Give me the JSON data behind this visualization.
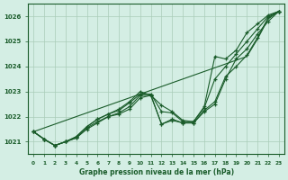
{
  "title": "Graphe pression niveau de la mer (hPa)",
  "background_color": "#d4eee4",
  "grid_color": "#aaccb8",
  "line_color": "#1a5c2a",
  "x_values": [
    0,
    1,
    2,
    3,
    4,
    5,
    6,
    7,
    8,
    9,
    10,
    11,
    12,
    13,
    14,
    15,
    16,
    17,
    18,
    19,
    20,
    21,
    22,
    23
  ],
  "straight_line": [
    1021.4,
    1021.55,
    1021.7,
    1021.85,
    1022.0,
    1022.15,
    1022.3,
    1022.45,
    1022.6,
    1022.75,
    1022.9,
    1023.05,
    1023.2,
    1023.35,
    1023.5,
    1023.65,
    1023.8,
    1023.95,
    1024.1,
    1024.25,
    1024.4,
    1025.1,
    1025.9,
    1026.2
  ],
  "series1": [
    1021.4,
    1021.1,
    1020.85,
    1021.0,
    1021.15,
    1021.5,
    1021.75,
    1022.0,
    1022.1,
    1022.3,
    1022.75,
    1022.85,
    1021.7,
    1021.85,
    1021.75,
    1021.75,
    1022.2,
    1022.5,
    1023.5,
    1024.3,
    1024.7,
    1025.3,
    1025.8,
    1026.2
  ],
  "series2": [
    1021.4,
    1021.1,
    1020.85,
    1021.0,
    1021.15,
    1021.55,
    1021.8,
    1022.0,
    1022.15,
    1022.4,
    1022.85,
    1022.85,
    1021.7,
    1021.9,
    1021.75,
    1021.75,
    1022.25,
    1022.6,
    1023.6,
    1024.0,
    1024.45,
    1025.15,
    1025.95,
    1026.2
  ],
  "series3": [
    1021.4,
    1021.1,
    1020.85,
    1021.0,
    1021.2,
    1021.6,
    1021.9,
    1022.1,
    1022.25,
    1022.55,
    1022.9,
    1022.9,
    1022.2,
    1022.15,
    1021.8,
    1021.8,
    1022.35,
    1023.5,
    1024.0,
    1024.5,
    1025.0,
    1025.5,
    1026.0,
    1026.2
  ],
  "series4": [
    1021.4,
    1021.1,
    1020.85,
    1021.0,
    1021.2,
    1021.6,
    1021.9,
    1022.1,
    1022.3,
    1022.6,
    1023.0,
    1022.85,
    1022.45,
    1022.2,
    1021.85,
    1021.8,
    1022.4,
    1024.4,
    1024.3,
    1024.65,
    1025.35,
    1025.7,
    1026.05,
    1026.2
  ],
  "ylim": [
    1020.5,
    1026.5
  ],
  "yticks": [
    1021,
    1022,
    1023,
    1024,
    1025,
    1026
  ],
  "xlim": [
    -0.5,
    23.5
  ],
  "xticks": [
    0,
    1,
    2,
    3,
    4,
    5,
    6,
    7,
    8,
    9,
    10,
    11,
    12,
    13,
    14,
    15,
    16,
    17,
    18,
    19,
    20,
    21,
    22,
    23
  ]
}
